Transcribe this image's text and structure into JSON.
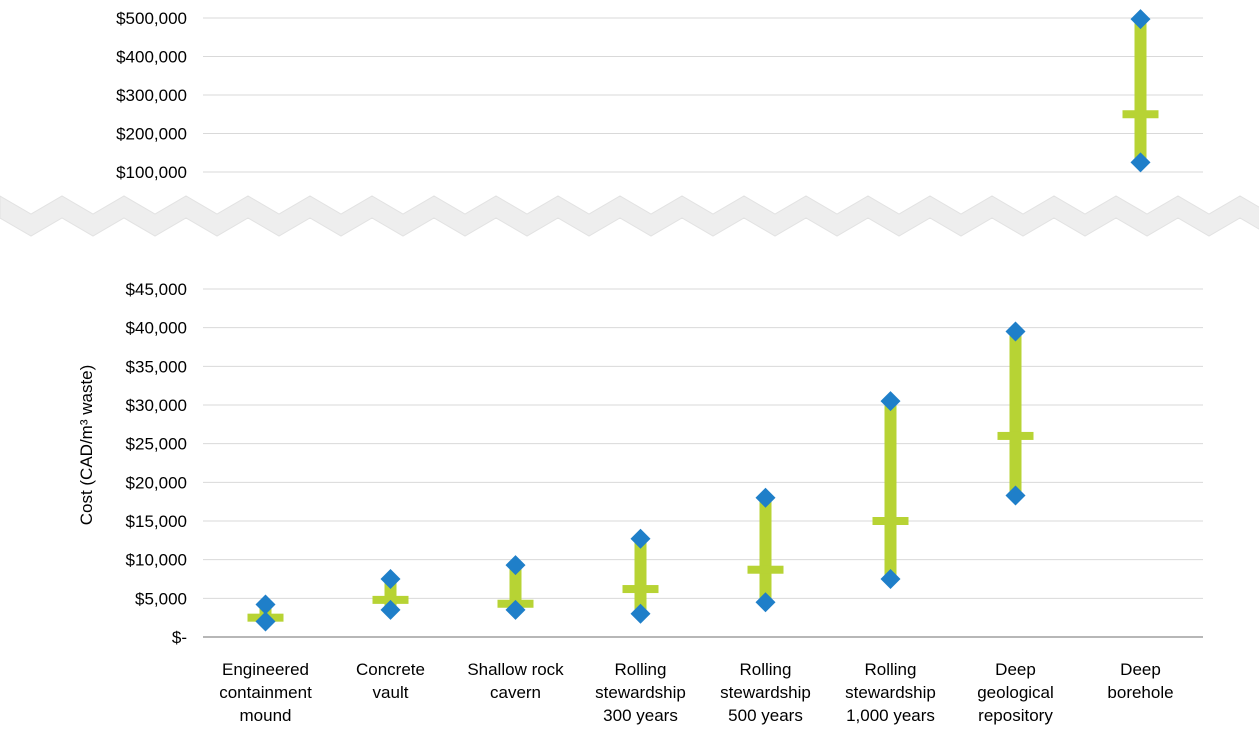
{
  "chart_data": {
    "type": "range",
    "ylabel": "Cost (CAD/m³ waste)",
    "categories": [
      [
        "Engineered",
        "containment",
        "mound"
      ],
      [
        "Concrete",
        "vault"
      ],
      [
        "Shallow rock",
        "cavern"
      ],
      [
        "Rolling",
        "stewardship",
        "300 years"
      ],
      [
        "Rolling",
        "stewardship",
        "500 years"
      ],
      [
        "Rolling",
        "stewardship",
        "1,000 years"
      ],
      [
        "Deep",
        "geological",
        "repository"
      ],
      [
        "Deep",
        "borehole"
      ]
    ],
    "series": {
      "min": [
        2000,
        3500,
        3500,
        3000,
        4500,
        7500,
        18300,
        125000
      ],
      "mean": [
        2500,
        4800,
        4300,
        6200,
        8700,
        15000,
        26000,
        250000
      ],
      "max": [
        4200,
        7500,
        9300,
        12700,
        18000,
        30500,
        39500,
        497000
      ]
    },
    "upper_axis": {
      "ticks": [
        100000,
        200000,
        300000,
        400000,
        500000
      ],
      "tick_labels": [
        "$100,000",
        "$200,000",
        "$300,000",
        "$400,000",
        "$500,000"
      ],
      "range": [
        100000,
        500000
      ]
    },
    "lower_axis": {
      "ticks": [
        0,
        5000,
        10000,
        15000,
        20000,
        25000,
        30000,
        35000,
        40000,
        45000
      ],
      "tick_labels": [
        "$-",
        "$5,000",
        "$10,000",
        "$15,000",
        "$20,000",
        "$25,000",
        "$30,000",
        "$35,000",
        "$40,000",
        "$45,000"
      ],
      "range": [
        0,
        45000
      ]
    },
    "axis_break": true,
    "grid": true,
    "colors": {
      "range_bar": "#b7d334",
      "marker": "#1f7fc9",
      "grid": "#d9d9d9",
      "axis": "#8c8c8c",
      "break": "#eeeeee"
    }
  }
}
